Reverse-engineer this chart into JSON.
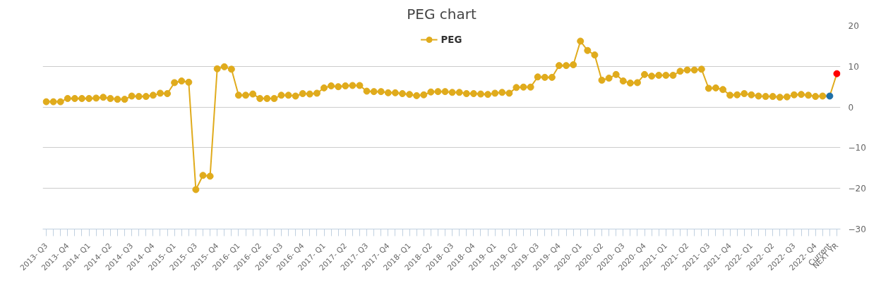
{
  "chart_data": {
    "type": "line",
    "title": "PEG chart",
    "categories": [
      "2013- Q3",
      null,
      null,
      "2013- Q4",
      null,
      null,
      "2014- Q1",
      null,
      null,
      "2014- Q2",
      null,
      null,
      "2014- Q3",
      null,
      null,
      "2014- Q4",
      null,
      null,
      "2015- Q1",
      null,
      null,
      "2015- Q3",
      null,
      null,
      "2015- Q4",
      null,
      null,
      "2016- Q1",
      null,
      null,
      "2016- Q2",
      null,
      null,
      "2016- Q3",
      null,
      null,
      "2016- Q4",
      null,
      null,
      "2017- Q1",
      null,
      null,
      "2017- Q2",
      null,
      null,
      "2017- Q3",
      null,
      null,
      "2017- Q4",
      null,
      null,
      "2018- Q1",
      null,
      null,
      "2018- Q2",
      null,
      null,
      "2018- Q3",
      null,
      null,
      "2018- Q4",
      null,
      null,
      "2019- Q1",
      null,
      null,
      "2019- Q2",
      null,
      null,
      "2019- Q3",
      null,
      null,
      "2019- Q4",
      null,
      null,
      "2020- Q1",
      null,
      null,
      "2020- Q2",
      null,
      null,
      "2020- Q3",
      null,
      null,
      "2020- Q4",
      null,
      null,
      "2021- Q1",
      null,
      null,
      "2021- Q2",
      null,
      null,
      "2021- Q3",
      null,
      null,
      "2021- Q4",
      null,
      null,
      "2022- Q1",
      null,
      null,
      "2022- Q2",
      null,
      null,
      "2022- Q3",
      null,
      null,
      "2022- Q4",
      null,
      "Current",
      "NEXT YR"
    ],
    "series": [
      {
        "name": "PEG",
        "color": "#e0ab1c",
        "colors": [
          "#e0ab1c",
          "#e0ab1c",
          "#e0ab1c",
          "#e0ab1c",
          "#e0ab1c",
          "#e0ab1c",
          "#e0ab1c",
          "#e0ab1c",
          "#e0ab1c",
          "#e0ab1c",
          "#e0ab1c",
          "#e0ab1c",
          "#e0ab1c",
          "#e0ab1c",
          "#e0ab1c",
          "#e0ab1c",
          "#e0ab1c",
          "#e0ab1c",
          "#e0ab1c",
          "#e0ab1c",
          "#e0ab1c",
          "#e0ab1c",
          "#e0ab1c",
          "#e0ab1c",
          "#e0ab1c",
          "#e0ab1c",
          "#e0ab1c",
          "#e0ab1c",
          "#e0ab1c",
          "#e0ab1c",
          "#e0ab1c",
          "#e0ab1c",
          "#e0ab1c",
          "#e0ab1c",
          "#e0ab1c",
          "#e0ab1c",
          "#e0ab1c",
          "#e0ab1c",
          "#e0ab1c",
          "#e0ab1c",
          "#e0ab1c",
          "#e0ab1c",
          "#e0ab1c",
          "#e0ab1c",
          "#e0ab1c",
          "#e0ab1c",
          "#e0ab1c",
          "#e0ab1c",
          "#e0ab1c",
          "#e0ab1c",
          "#e0ab1c",
          "#e0ab1c",
          "#e0ab1c",
          "#e0ab1c",
          "#e0ab1c",
          "#e0ab1c",
          "#e0ab1c",
          "#e0ab1c",
          "#e0ab1c",
          "#e0ab1c",
          "#e0ab1c",
          "#e0ab1c",
          "#e0ab1c",
          "#e0ab1c",
          "#e0ab1c",
          "#e0ab1c",
          "#e0ab1c",
          "#e0ab1c",
          "#e0ab1c",
          "#e0ab1c",
          "#e0ab1c",
          "#e0ab1c",
          "#e0ab1c",
          "#e0ab1c",
          "#e0ab1c",
          "#e0ab1c",
          "#e0ab1c",
          "#e0ab1c",
          "#e0ab1c",
          "#e0ab1c",
          "#e0ab1c",
          "#e0ab1c",
          "#e0ab1c",
          "#e0ab1c",
          "#e0ab1c",
          "#e0ab1c",
          "#e0ab1c",
          "#e0ab1c",
          "#e0ab1c",
          "#e0ab1c",
          "#e0ab1c",
          "#e0ab1c",
          "#e0ab1c",
          "#e0ab1c",
          "#e0ab1c",
          "#e0ab1c",
          "#e0ab1c",
          "#e0ab1c",
          "#e0ab1c",
          "#e0ab1c",
          "#e0ab1c",
          "#e0ab1c",
          "#e0ab1c",
          "#e0ab1c",
          "#e0ab1c",
          "#e0ab1c",
          "#e0ab1c",
          "#e0ab1c",
          "#e0ab1c",
          "#e0ab1c",
          "#1f6fa8",
          "#ff0000"
        ],
        "values": [
          1.3,
          1.3,
          1.3,
          2.1,
          2.1,
          2.1,
          2.1,
          2.2,
          2.4,
          2.1,
          1.9,
          1.9,
          2.7,
          2.6,
          2.6,
          2.9,
          3.4,
          3.3,
          6.0,
          6.4,
          6.1,
          -20.3,
          -16.8,
          -17.0,
          9.4,
          9.9,
          9.3,
          2.9,
          2.9,
          3.2,
          2.1,
          2.1,
          2.1,
          2.9,
          2.9,
          2.7,
          3.3,
          3.2,
          3.4,
          4.7,
          5.2,
          5.0,
          5.2,
          5.3,
          5.3,
          3.9,
          3.8,
          3.8,
          3.5,
          3.5,
          3.3,
          3.1,
          2.8,
          3.0,
          3.7,
          3.8,
          3.8,
          3.6,
          3.6,
          3.3,
          3.3,
          3.2,
          3.1,
          3.4,
          3.6,
          3.4,
          4.8,
          4.9,
          4.9,
          7.4,
          7.3,
          7.3,
          10.2,
          10.2,
          10.4,
          16.2,
          13.9,
          12.8,
          6.6,
          7.1,
          8.0,
          6.4,
          5.9,
          6.0,
          8.0,
          7.6,
          7.8,
          7.8,
          7.8,
          8.8,
          9.1,
          9.1,
          9.3,
          4.6,
          4.7,
          4.3,
          2.9,
          3.0,
          3.3,
          3.0,
          2.7,
          2.6,
          2.6,
          2.4,
          2.5,
          3.0,
          3.1,
          2.9,
          2.6,
          2.7,
          2.7,
          8.2
        ]
      }
    ],
    "ylim": [
      -30,
      20
    ],
    "yticks": [
      -30,
      -20,
      -10,
      0,
      10,
      20
    ],
    "grid": "y",
    "legend": "top",
    "marker": "circle",
    "line_style": "solid"
  }
}
